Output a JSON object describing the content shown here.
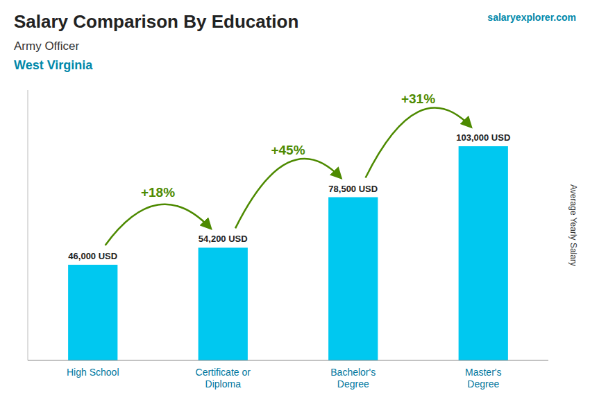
{
  "chart_data": {
    "type": "bar",
    "title": "Salary Comparison By Education",
    "subtitle": [
      "Army Officer",
      "West Virginia"
    ],
    "source": "salaryexplorer.com",
    "y_label": "Average Yearly Salary",
    "categories": [
      "High School",
      "Certificate or\nDiploma",
      "Bachelor's\nDegree",
      "Master's\nDegree"
    ],
    "values": [
      46000,
      54200,
      78500,
      103000
    ],
    "value_labels": [
      "46,000 USD",
      "54,200 USD",
      "78,500 USD",
      "103,000 USD"
    ],
    "data_labels": true,
    "annotations": [
      "+18%",
      "+45%",
      "+31%"
    ],
    "color": "#00c8f0",
    "ylim": [
      0,
      130000
    ],
    "tick_labels": "x",
    "grid": false
  }
}
